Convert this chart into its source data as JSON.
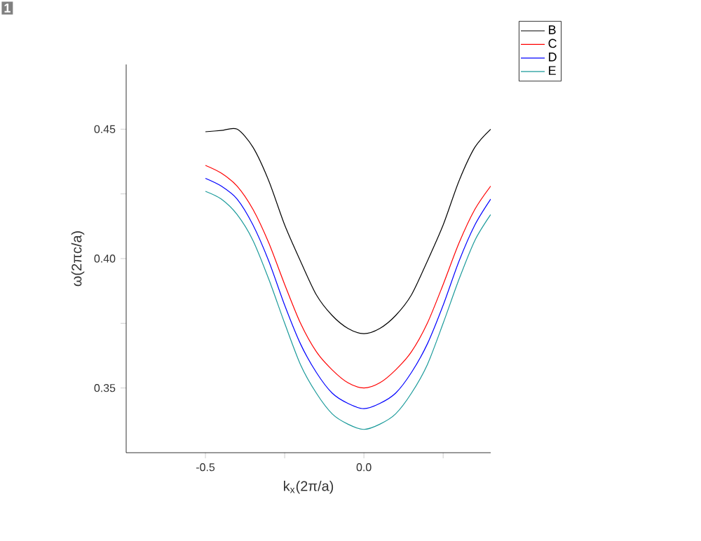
{
  "chart_data": {
    "type": "line",
    "xlabel": "k$_{x}$(2π/a)",
    "ylabel": "ω(2πc/a)",
    "annotations": [
      "1"
    ],
    "xlim": [
      -0.75,
      0.4
    ],
    "ylim": [
      0.325,
      0.475
    ],
    "xticks": [
      -0.5,
      {
        "value": -0.25,
        "label": null
      },
      {
        "value": 0,
        "label": "0.0"
      },
      {
        "value": 0.25,
        "label": null
      }
    ],
    "yticks": [
      {
        "value": 0.35,
        "label": "0.35"
      },
      {
        "value": 0.375,
        "label": null
      },
      {
        "value": 0.4,
        "label": "0.40"
      },
      {
        "value": 0.425,
        "label": null
      },
      {
        "value": 0.45,
        "label": "0.45"
      }
    ],
    "legend": "top right",
    "x": [
      -0.5,
      -0.45,
      -0.4,
      -0.35,
      -0.3,
      -0.25,
      -0.2,
      -0.15,
      -0.1,
      -0.05,
      0,
      0.05,
      0.1,
      0.15,
      0.2,
      0.25,
      0.3,
      0.35,
      0.4
    ],
    "series": [
      {
        "name": "B",
        "color": "#000000",
        "values": [
          0.449,
          0.4495,
          0.45,
          0.443,
          0.43,
          0.413,
          0.399,
          0.386,
          0.378,
          0.373,
          0.371,
          0.373,
          0.378,
          0.386,
          0.399,
          0.413,
          0.43,
          0.443,
          0.45
        ]
      },
      {
        "name": "C",
        "color": "#ff0000",
        "values": [
          0.436,
          0.433,
          0.428,
          0.419,
          0.406,
          0.39,
          0.375,
          0.364,
          0.357,
          0.352,
          0.35,
          0.352,
          0.357,
          0.364,
          0.375,
          0.39,
          0.406,
          0.419,
          0.428
        ]
      },
      {
        "name": "D",
        "color": "#0000ff",
        "values": [
          0.431,
          0.428,
          0.423,
          0.413,
          0.399,
          0.382,
          0.367,
          0.356,
          0.348,
          0.344,
          0.342,
          0.344,
          0.348,
          0.356,
          0.367,
          0.382,
          0.399,
          0.413,
          0.423
        ]
      },
      {
        "name": "E",
        "color": "#1a9a9a",
        "values": [
          0.426,
          0.423,
          0.417,
          0.407,
          0.392,
          0.375,
          0.359,
          0.348,
          0.34,
          0.336,
          0.334,
          0.336,
          0.34,
          0.348,
          0.359,
          0.375,
          0.392,
          0.407,
          0.417
        ]
      }
    ]
  }
}
